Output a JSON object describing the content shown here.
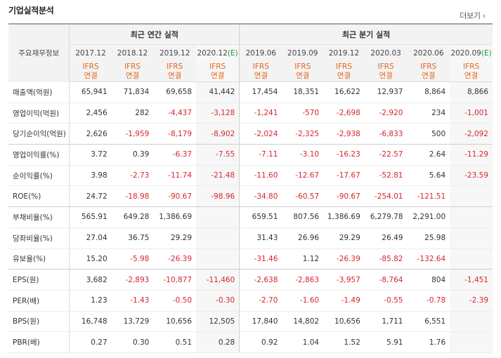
{
  "section": {
    "title": "기업실적분석",
    "more": "더보기 ›"
  },
  "header": {
    "row_label": "주요재무정보",
    "annual_group": "최근 연간 실적",
    "quarter_group": "최근 분기 실적",
    "ifrs_line1": "IFRS",
    "ifrs_line2": "연결",
    "annual_periods": [
      "2017.12",
      "2018.12",
      "2019.12",
      "2020.12"
    ],
    "quarter_periods": [
      "2019.06",
      "2019.09",
      "2019.12",
      "2020.03",
      "2020.06",
      "2020.09"
    ],
    "est_mark": "(E)"
  },
  "rows": [
    {
      "label": "매출액(억원)",
      "values": [
        "65,941",
        "71,834",
        "69,658",
        "41,442",
        "17,454",
        "18,351",
        "16,622",
        "12,937",
        "8,864",
        "8,866"
      ]
    },
    {
      "label": "영업이익(억원)",
      "values": [
        "2,456",
        "282",
        "-4,437",
        "-3,128",
        "-1,241",
        "-570",
        "-2,698",
        "-2,920",
        "234",
        "-1,001"
      ]
    },
    {
      "label": "당기순이익(억원)",
      "values": [
        "2,626",
        "-1,959",
        "-8,179",
        "-8,902",
        "-2,024",
        "-2,325",
        "-2,938",
        "-6,833",
        "500",
        "-2,092"
      ]
    },
    {
      "label": "영업이익률(%)",
      "values": [
        "3.72",
        "0.39",
        "-6.37",
        "-7.55",
        "-7.11",
        "-3.10",
        "-16.23",
        "-22.57",
        "2.64",
        "-11.29"
      ]
    },
    {
      "label": "순이익률(%)",
      "values": [
        "3.98",
        "-2.73",
        "-11.74",
        "-21.48",
        "-11.60",
        "-12.67",
        "-17.67",
        "-52.81",
        "5.64",
        "-23.59"
      ]
    },
    {
      "label": "ROE(%)",
      "values": [
        "24.72",
        "-18.98",
        "-90.67",
        "-98.96",
        "-34.80",
        "-60.57",
        "-90.67",
        "-254.01",
        "-121.51",
        ""
      ]
    },
    {
      "label": "부채비율(%)",
      "values": [
        "565.91",
        "649.28",
        "1,386.69",
        "",
        "659.51",
        "807.56",
        "1,386.69",
        "6,279.78",
        "2,291.00",
        ""
      ]
    },
    {
      "label": "당좌비율(%)",
      "values": [
        "27.04",
        "36.75",
        "29.29",
        "",
        "31.43",
        "26.96",
        "29.29",
        "26.49",
        "25.98",
        ""
      ]
    },
    {
      "label": "유보율(%)",
      "values": [
        "15.20",
        "-5.98",
        "-26.39",
        "",
        "-31.46",
        "1.12",
        "-26.39",
        "-85.82",
        "-132.64",
        ""
      ]
    },
    {
      "label": "EPS(원)",
      "values": [
        "3,682",
        "-2,893",
        "-10,877",
        "-11,460",
        "-2,638",
        "-2,863",
        "-3,957",
        "-8,764",
        "804",
        "-1,451"
      ]
    },
    {
      "label": "PER(배)",
      "values": [
        "1.23",
        "-1.43",
        "-0.50",
        "-0.30",
        "-2.70",
        "-1.60",
        "-1.49",
        "-0.55",
        "-0.78",
        "-2.39"
      ]
    },
    {
      "label": "BPS(원)",
      "values": [
        "16,748",
        "13,729",
        "10,656",
        "12,505",
        "17,840",
        "14,802",
        "10,656",
        "1,711",
        "6,551",
        ""
      ]
    },
    {
      "label": "PBR(배)",
      "values": [
        "0.27",
        "0.30",
        "0.51",
        "0.28",
        "0.92",
        "1.04",
        "1.52",
        "5.91",
        "1.76",
        ""
      ]
    }
  ],
  "colors": {
    "negative": "#d6262e",
    "ifrs": "#e2661f",
    "estimate_mark": "#1c9a3a"
  }
}
